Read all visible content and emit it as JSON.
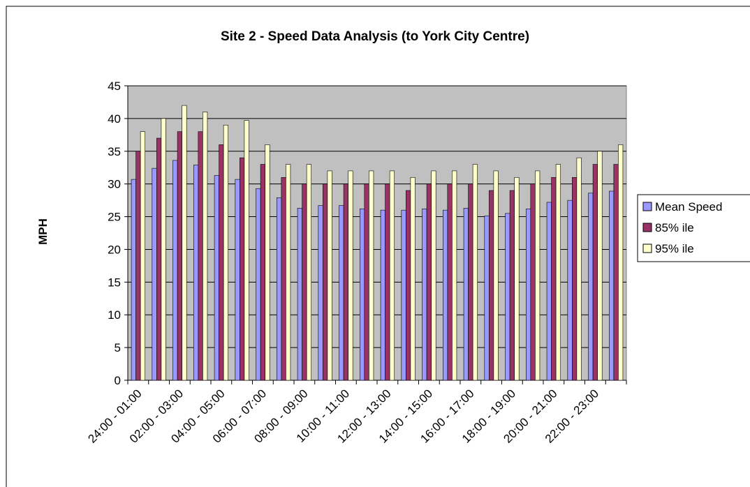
{
  "chart_data": {
    "type": "bar",
    "title": "Site 2 - Speed Data Analysis (to York City Centre)",
    "y_label": "MPH",
    "categories": [
      "24:00 - 01:00",
      null,
      "02:00 - 03:00",
      null,
      "04:00 - 05:00",
      null,
      "06:00 - 07:00",
      null,
      "08:00 - 09:00",
      null,
      "10:00 - 11:00",
      null,
      "12:00 - 13:00",
      null,
      "14:00 - 15:00",
      null,
      "16:00 - 17:00",
      null,
      "18:00 - 19:00",
      null,
      "20:00 - 21:00",
      null,
      "22:00 - 23:00",
      null
    ],
    "series": [
      {
        "name": "Mean Speed",
        "color": "#9999ff",
        "values": [
          30.7,
          32.4,
          33.6,
          32.9,
          31.3,
          30.7,
          29.3,
          27.9,
          26.3,
          26.7,
          26.7,
          26.2,
          26.0,
          26.0,
          26.2,
          26.0,
          26.3,
          25.1,
          25.5,
          26.2,
          27.2,
          27.5,
          28.6,
          28.9
        ]
      },
      {
        "name": "85% ile",
        "color": "#993366",
        "values": [
          35,
          37,
          38,
          38,
          36,
          34,
          33,
          31,
          30,
          30,
          30,
          30,
          30,
          29,
          30,
          30,
          30,
          29,
          29,
          30,
          31,
          31,
          33,
          33
        ]
      },
      {
        "name": "95% ile",
        "color": "#ffffcc",
        "values": [
          38,
          40,
          42,
          41,
          39,
          39.7,
          36,
          33,
          33,
          32,
          32,
          32,
          32,
          31,
          32,
          32,
          33,
          32,
          31,
          32,
          33,
          34,
          35,
          36
        ]
      }
    ],
    "ylim": [
      0,
      45
    ],
    "yticks": [
      0,
      5,
      10,
      15,
      20,
      25,
      30,
      35,
      40,
      45
    ],
    "grid": true,
    "legend": "right"
  }
}
